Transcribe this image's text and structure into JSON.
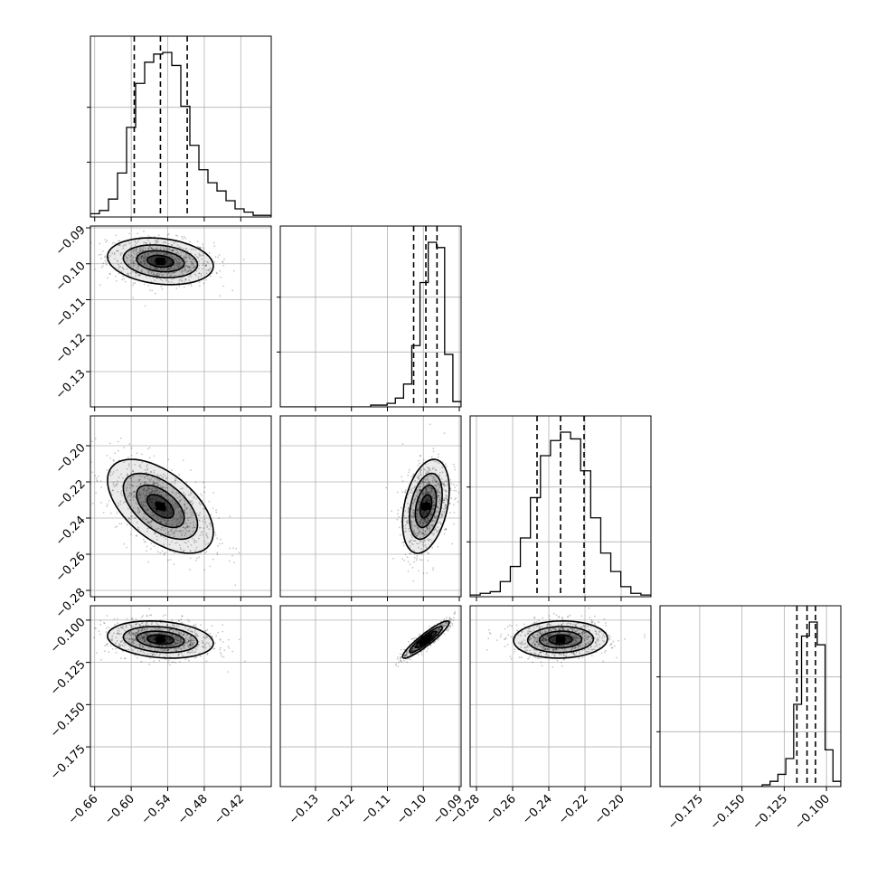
{
  "chart_data": {
    "type": "corner",
    "grid": true,
    "parameters": [
      {
        "ticks": [
          -0.66,
          -0.6,
          -0.54,
          -0.48,
          -0.42
        ],
        "tick_labels": [
          "−0.66",
          "−0.60",
          "−0.54",
          "−0.48",
          "−0.42"
        ],
        "range": [
          -0.667,
          -0.37
        ],
        "quantiles": [
          -0.595,
          -0.552,
          -0.508
        ],
        "hist": [
          2,
          4,
          11,
          27,
          55,
          82,
          95,
          100,
          101,
          93,
          68,
          44,
          29,
          21,
          16,
          10,
          5,
          3,
          1,
          1
        ]
      },
      {
        "ticks": [
          -0.13,
          -0.12,
          -0.11,
          -0.1,
          -0.09
        ],
        "tick_labels": [
          "−0.13",
          "−0.12",
          "−0.11",
          "−0.10",
          "−0.09"
        ],
        "range": [
          -0.1398,
          -0.0895
        ],
        "quantiles": [
          -0.1027,
          -0.0993,
          -0.0962
        ],
        "hist": [
          0,
          0,
          0,
          0,
          0,
          0,
          0,
          0,
          0,
          0,
          0,
          1,
          1,
          2,
          5,
          13,
          35,
          71,
          94,
          91,
          30,
          3
        ]
      },
      {
        "ticks": [
          -0.28,
          -0.26,
          -0.24,
          -0.22,
          -0.2
        ],
        "tick_labels": [
          "−0.28",
          "−0.26",
          "−0.24",
          "−0.22",
          "−0.20"
        ],
        "range": [
          -0.2835,
          -0.1835
        ],
        "quantiles": [
          -0.2465,
          -0.2335,
          -0.2205
        ],
        "hist": [
          1,
          2,
          3,
          9,
          18,
          35,
          59,
          84,
          93,
          98,
          94,
          75,
          47,
          26,
          15,
          6,
          2,
          1
        ]
      },
      {
        "ticks": [
          -0.175,
          -0.15,
          -0.125,
          -0.1
        ],
        "tick_labels": [
          "−0.175",
          "−0.150",
          "−0.125",
          "−0.100"
        ],
        "range": [
          -0.1985,
          -0.0915
        ],
        "quantiles": [
          -0.1175,
          -0.1115,
          -0.1065
        ],
        "hist": [
          0,
          0,
          0,
          0,
          0,
          0,
          0,
          0,
          0,
          0,
          0,
          0,
          0,
          1,
          3,
          7,
          16,
          47,
          86,
          94,
          81,
          21,
          3
        ]
      }
    ],
    "correlations": {
      "1-0": -0.2,
      "2-0": -0.55,
      "2-1": 0.35,
      "3-0": -0.2,
      "3-1": 0.92,
      "3-2": 0.05
    }
  }
}
